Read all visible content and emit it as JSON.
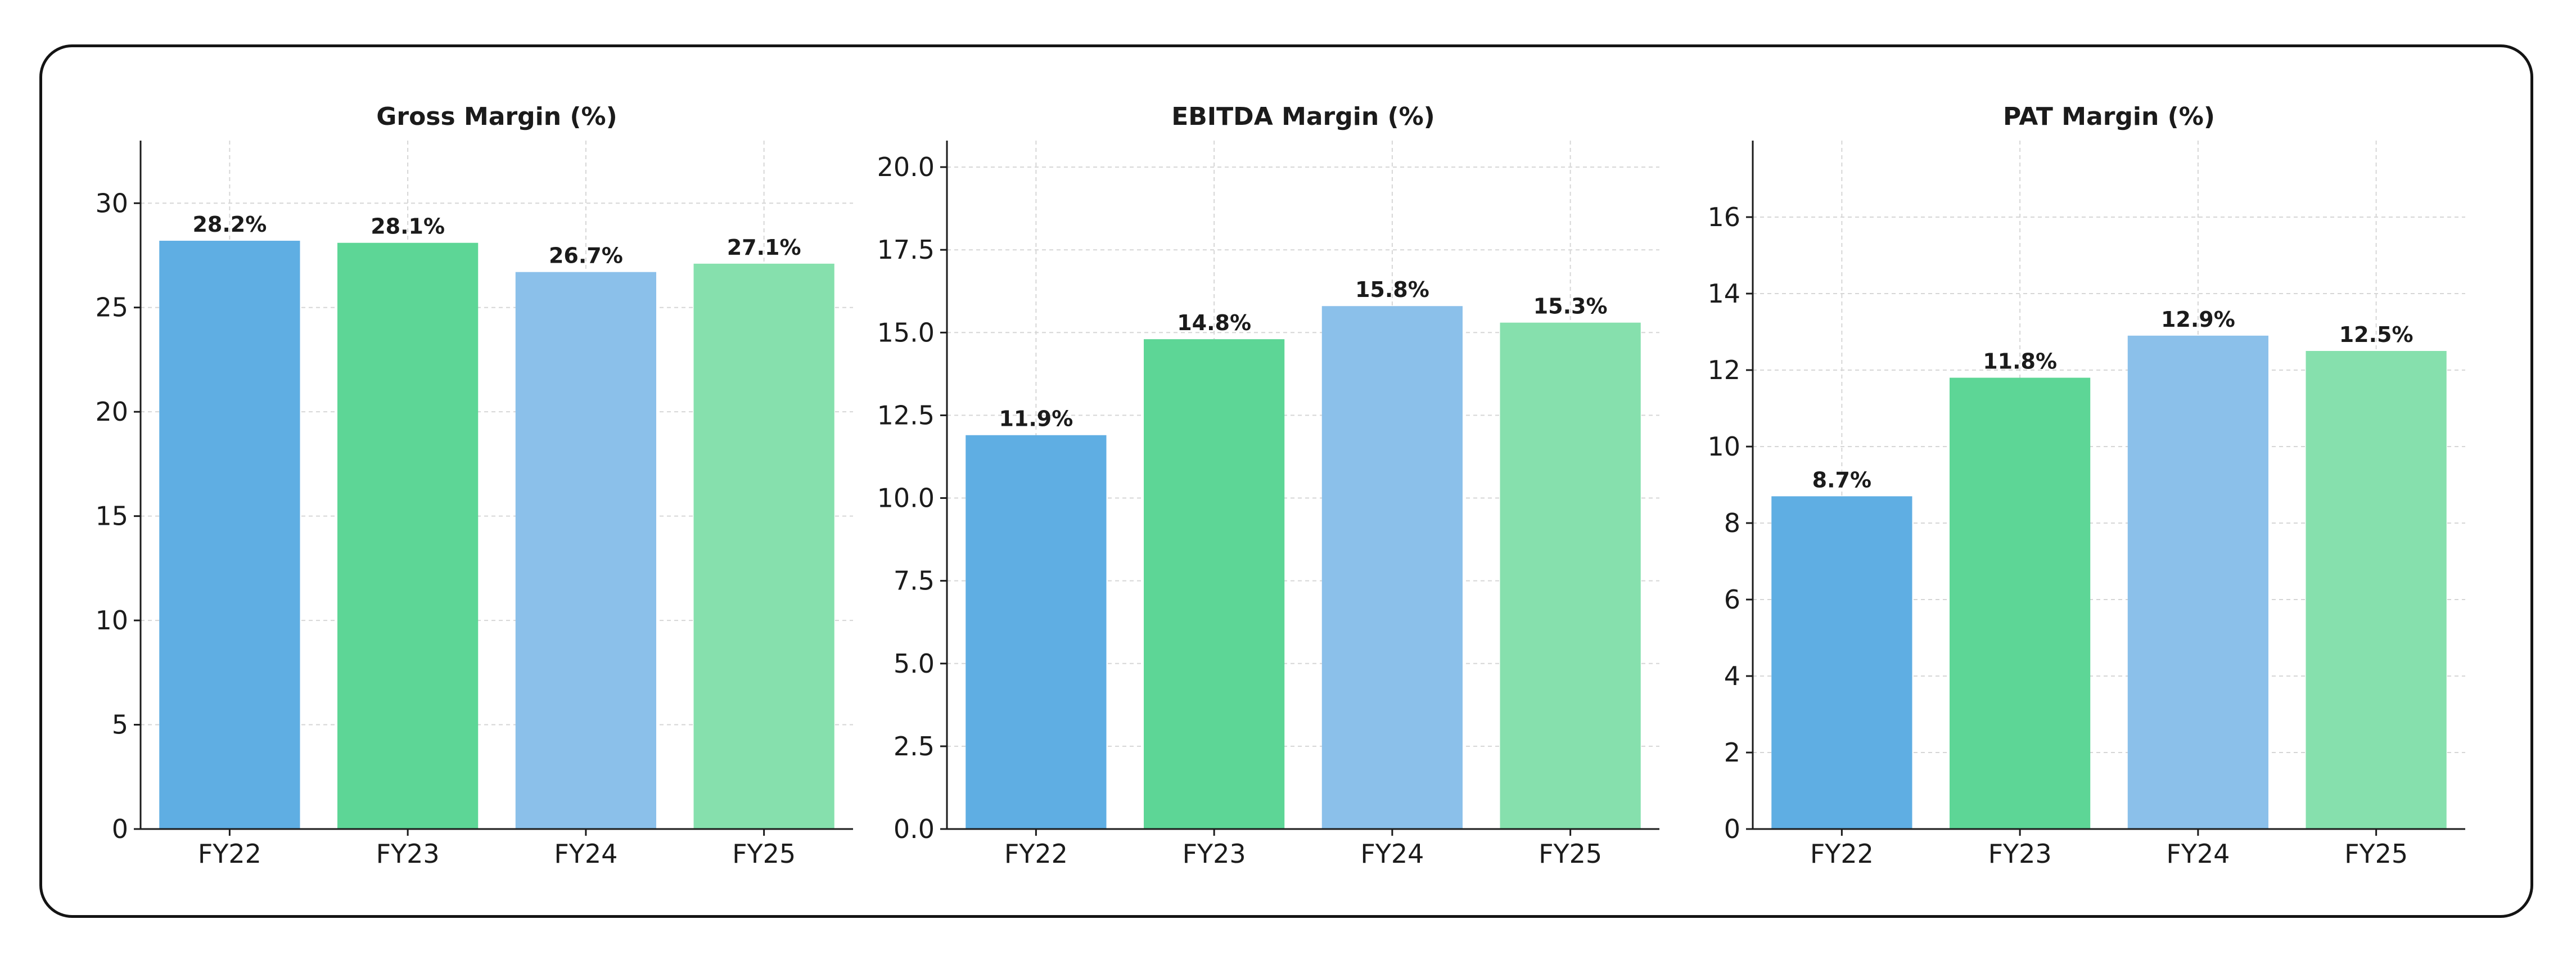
{
  "colors": [
    "#5faee3",
    "#5dd696",
    "#8bc0ea",
    "#86e0ad"
  ],
  "chart_data": [
    {
      "type": "bar",
      "title": "Gross Margin (%)",
      "categories": [
        "FY22",
        "FY23",
        "FY24",
        "FY25"
      ],
      "values": [
        28.2,
        28.1,
        26.7,
        27.1
      ],
      "data_labels": [
        "28.2%",
        "28.1%",
        "26.7%",
        "27.1%"
      ],
      "ylim": [
        0,
        33
      ],
      "yticks": [
        0,
        5,
        10,
        15,
        20,
        25,
        30
      ],
      "ytick_labels": [
        "0",
        "5",
        "10",
        "15",
        "20",
        "25",
        "30"
      ],
      "grid": true
    },
    {
      "type": "bar",
      "title": "EBITDA Margin (%)",
      "categories": [
        "FY22",
        "FY23",
        "FY24",
        "FY25"
      ],
      "values": [
        11.9,
        14.8,
        15.8,
        15.3
      ],
      "data_labels": [
        "11.9%",
        "14.8%",
        "15.8%",
        "15.3%"
      ],
      "ylim": [
        0,
        20.8
      ],
      "yticks": [
        0,
        2.5,
        5,
        7.5,
        10,
        12.5,
        15,
        17.5,
        20
      ],
      "ytick_labels": [
        "0.0",
        "2.5",
        "5.0",
        "7.5",
        "10.0",
        "12.5",
        "15.0",
        "17.5",
        "20.0"
      ],
      "grid": true
    },
    {
      "type": "bar",
      "title": "PAT Margin (%)",
      "categories": [
        "FY22",
        "FY23",
        "FY24",
        "FY25"
      ],
      "values": [
        8.7,
        11.8,
        12.9,
        12.5
      ],
      "data_labels": [
        "8.7%",
        "11.8%",
        "12.9%",
        "12.5%"
      ],
      "ylim": [
        0,
        18
      ],
      "yticks": [
        0,
        2,
        4,
        6,
        8,
        10,
        12,
        14,
        16
      ],
      "ytick_labels": [
        "0",
        "2",
        "4",
        "6",
        "8",
        "10",
        "12",
        "14",
        "16"
      ],
      "grid": true
    }
  ]
}
